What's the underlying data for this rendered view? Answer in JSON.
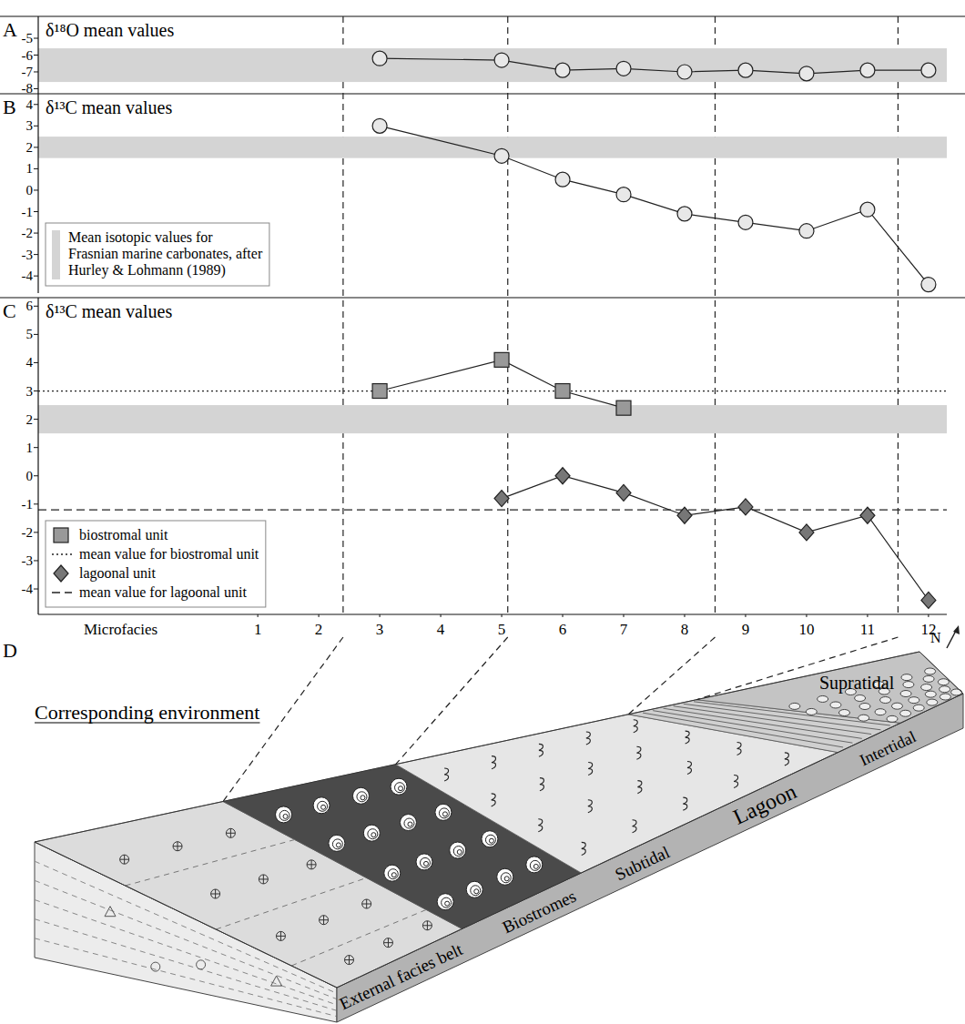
{
  "chart_data": [
    {
      "type": "line",
      "panel": "A",
      "title": "δ¹⁸O mean values",
      "xlim": [
        -2.6,
        12.3
      ],
      "ylim": [
        -8.3,
        -3.7
      ],
      "yticks": [
        -8,
        -7,
        -6,
        -5
      ],
      "tick_labels": "y",
      "reference_band": {
        "range": [
          -7.6,
          -5.6
        ],
        "color": "#d4d4d4"
      },
      "series": [
        {
          "color": "#e8e8e8",
          "marker": "circle",
          "x": [
            3,
            5,
            6,
            7,
            8,
            9,
            10,
            11,
            12
          ],
          "values": [
            -6.2,
            -6.3,
            -6.9,
            -6.8,
            -7.0,
            -6.9,
            -7.1,
            -6.9,
            -6.9
          ]
        }
      ]
    },
    {
      "type": "line",
      "panel": "B",
      "title": "δ¹³C mean values",
      "xlim": [
        -2.6,
        12.3
      ],
      "ylim": [
        -4.8,
        4.5
      ],
      "yticks": [
        -4,
        -3,
        -2,
        -1,
        0,
        1,
        2,
        3,
        4
      ],
      "tick_labels": "y",
      "legend": "lower left",
      "reference_band": {
        "name": "Mean isotopic values for Frasnian marine carbonates, after Hurley & Lohmann (1989)",
        "range": [
          1.5,
          2.5
        ],
        "color": "#d4d4d4"
      },
      "series": [
        {
          "color": "#e8e8e8",
          "marker": "circle",
          "x": [
            3,
            5,
            6,
            7,
            8,
            9,
            10,
            11,
            12
          ],
          "values": [
            3.0,
            1.6,
            0.5,
            -0.2,
            -1.1,
            -1.5,
            -1.9,
            -0.9,
            -4.4
          ]
        }
      ]
    },
    {
      "type": "line",
      "panel": "C",
      "title": "δ¹³C mean values",
      "xlabel": "Microfacies",
      "xlim": [
        -2.6,
        12.3
      ],
      "xticks": [
        1,
        2,
        3,
        4,
        5,
        6,
        7,
        8,
        9,
        10,
        11,
        12
      ],
      "ylim": [
        -4.9,
        6.3
      ],
      "yticks": [
        -4,
        -3,
        -2,
        -1,
        0,
        1,
        2,
        3,
        4,
        5,
        6
      ],
      "legend": "lower left",
      "reference_band": {
        "range": [
          1.5,
          2.5
        ],
        "color": "#d4d4d4"
      },
      "reference_lines": [
        {
          "name": "mean value for biostromal unit",
          "value": 3.0,
          "line_style": "dotted"
        },
        {
          "name": "mean value for lagoonal unit",
          "value": -1.2,
          "line_style": "dashed"
        }
      ],
      "series": [
        {
          "name": "biostromal unit",
          "color": "#999999",
          "marker": "square",
          "x": [
            3,
            5,
            6,
            7
          ],
          "values": [
            3.0,
            4.1,
            3.0,
            2.4
          ]
        },
        {
          "name": "lagoonal unit",
          "color": "#777777",
          "marker": "diamond",
          "x": [
            5,
            6,
            7,
            8,
            9,
            10,
            11,
            12
          ],
          "values": [
            -0.8,
            0.0,
            -0.6,
            -1.4,
            -1.1,
            -2.0,
            -1.4,
            -4.4
          ]
        }
      ]
    }
  ],
  "diagram": {
    "panel": "D",
    "title": "Corresponding environment",
    "boundaries": [
      2.4,
      5.1,
      8.5,
      11.5
    ],
    "front_labels": [
      "External facies belt",
      "Biostromes",
      "Subtidal",
      "Lagoon",
      "Intertidal"
    ],
    "top_label": "Supratidal",
    "compass": "N"
  }
}
